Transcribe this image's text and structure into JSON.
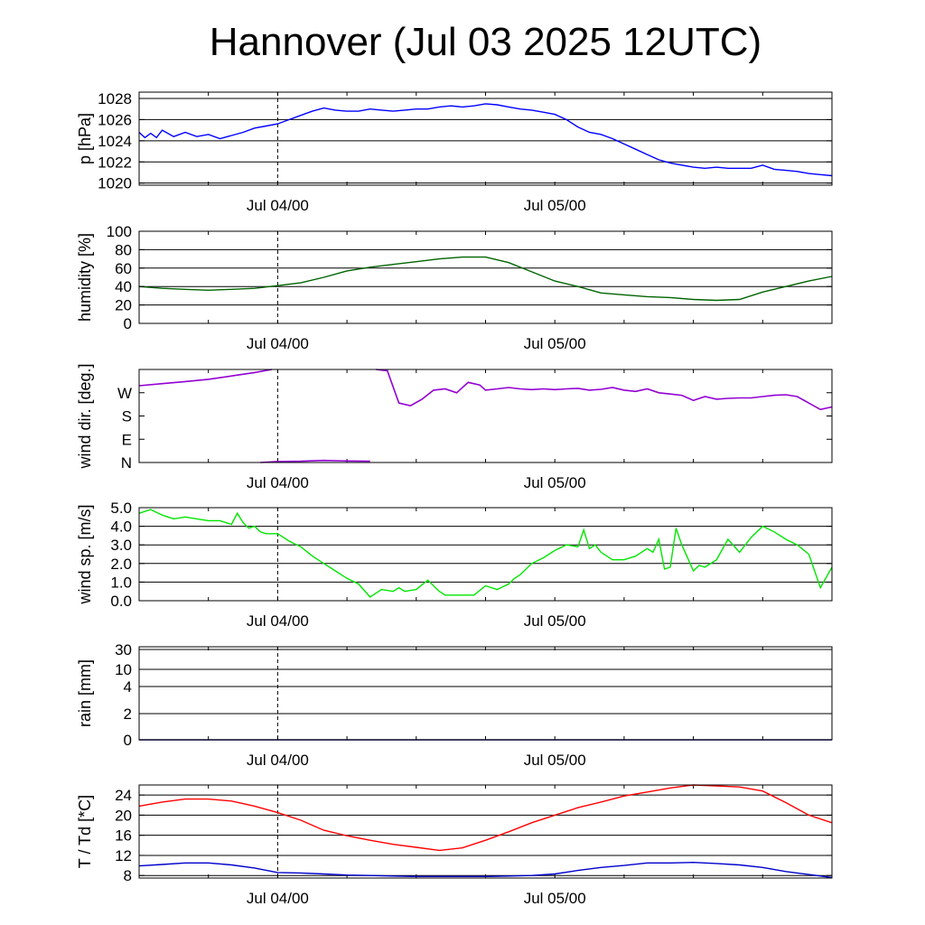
{
  "title": "Hannover (Jul 03 2025 12UTC)",
  "x_tick_labels": [
    "Jul 04/00",
    "Jul 05/00"
  ],
  "chart_data": [
    {
      "id": "pressure",
      "type": "line",
      "ylabel": "p [hPa]",
      "ylim": [
        1019.8,
        1028.6
      ],
      "yticks": [
        1020,
        1022,
        1024,
        1026,
        1028
      ],
      "ytick_labels": [
        "1020",
        "1022",
        "1024",
        "1026",
        "1028"
      ],
      "grid": true,
      "x_hours": [
        0,
        0.5,
        1,
        1.5,
        2,
        3,
        4,
        5,
        6,
        7,
        8,
        9,
        10,
        11,
        12,
        13,
        14,
        15,
        16,
        17,
        18,
        19,
        20,
        21,
        22,
        23,
        24,
        25,
        26,
        27,
        28,
        29,
        30,
        31,
        32,
        33,
        34,
        35,
        36,
        37,
        38,
        39,
        40,
        41,
        42,
        43,
        44,
        45,
        46,
        47,
        48,
        49,
        50,
        51,
        52,
        53,
        54,
        55,
        56,
        57,
        58,
        59,
        60
      ],
      "series": [
        {
          "color": "#0000ff",
          "values": [
            1024.8,
            1024.3,
            1024.7,
            1024.3,
            1025.0,
            1024.4,
            1024.8,
            1024.4,
            1024.6,
            1024.2,
            1024.5,
            1024.8,
            1025.2,
            1025.4,
            1025.6,
            1026.0,
            1026.4,
            1026.8,
            1027.1,
            1026.9,
            1026.8,
            1026.8,
            1027.0,
            1026.9,
            1026.8,
            1026.9,
            1027.0,
            1027.0,
            1027.2,
            1027.3,
            1027.2,
            1027.3,
            1027.5,
            1027.4,
            1027.2,
            1027.0,
            1026.9,
            1026.7,
            1026.5,
            1026.0,
            1025.3,
            1024.8,
            1024.6,
            1024.2,
            1023.7,
            1023.2,
            1022.7,
            1022.2,
            1021.9,
            1021.7,
            1021.5,
            1021.4,
            1021.5,
            1021.4,
            1021.4,
            1021.4,
            1021.7,
            1021.3,
            1021.2,
            1021.1,
            1020.9,
            1020.8,
            1020.7
          ]
        }
      ]
    },
    {
      "id": "humidity",
      "type": "line",
      "ylabel": "humidity [%]",
      "ylim": [
        0,
        100
      ],
      "yticks": [
        0,
        20,
        40,
        60,
        80,
        100
      ],
      "ytick_labels": [
        "0",
        "20",
        "40",
        "60",
        "80",
        "100"
      ],
      "grid": true,
      "x_hours": [
        0,
        2,
        4,
        6,
        8,
        10,
        12,
        14,
        16,
        18,
        20,
        22,
        24,
        26,
        28,
        30,
        32,
        34,
        36,
        38,
        40,
        42,
        44,
        46,
        48,
        50,
        52,
        54,
        56,
        58,
        60
      ],
      "series": [
        {
          "color": "#006400",
          "values": [
            40,
            38,
            37,
            36,
            37,
            38,
            41,
            44,
            50,
            57,
            61,
            64,
            67,
            70,
            72,
            72,
            66,
            56,
            46,
            40,
            33,
            31,
            29,
            28,
            26,
            25,
            26,
            34,
            40,
            46,
            51
          ]
        }
      ]
    },
    {
      "id": "wind_direction",
      "type": "scatter",
      "ylabel": "wind dir. [deg.]",
      "ylim": [
        0,
        360
      ],
      "yticks": [
        0,
        90,
        180,
        270
      ],
      "ytick_labels": [
        "N",
        "E",
        "S",
        "W"
      ],
      "grid": false,
      "series": [
        {
          "color": "#9400d3",
          "segments": [
            {
              "x": [
                0,
                2,
                4,
                6,
                8,
                10,
                11.5
              ],
              "y": [
                297,
                305,
                313,
                322,
                335,
                348,
                360
              ]
            },
            {
              "x": [
                10.5,
                12,
                14,
                16,
                18,
                20
              ],
              "y": [
                0,
                4,
                5,
                8,
                6,
                5
              ]
            },
            {
              "x": [
                20.5,
                21.5,
                22.5,
                23.5,
                24.5,
                25.5,
                26.5,
                27.5,
                28.5,
                29.5,
                30,
                31,
                32,
                33,
                34,
                35,
                36,
                37,
                38,
                39,
                40,
                41,
                42,
                43,
                44,
                45,
                46,
                47,
                48,
                49,
                50,
                51,
                52,
                53,
                54,
                55,
                56,
                57,
                58,
                59,
                60
              ],
              "y": [
                360,
                355,
                230,
                220,
                245,
                280,
                285,
                270,
                310,
                300,
                280,
                285,
                290,
                285,
                282,
                285,
                282,
                285,
                287,
                280,
                283,
                290,
                280,
                275,
                285,
                270,
                265,
                260,
                240,
                255,
                245,
                248,
                250,
                250,
                255,
                260,
                262,
                255,
                230,
                205,
                215
              ]
            }
          ]
        }
      ]
    },
    {
      "id": "wind_speed",
      "type": "line",
      "ylabel": "wind sp. [m/s]",
      "ylim": [
        0,
        5
      ],
      "yticks": [
        0,
        1,
        2,
        3,
        4,
        5
      ],
      "ytick_labels": [
        "0.0",
        "1.0",
        "2.0",
        "3.0",
        "4.0",
        "5.0"
      ],
      "grid": true,
      "x_hours": [
        0,
        1,
        2,
        3,
        4,
        5,
        6,
        7,
        8,
        8.5,
        9,
        9.5,
        10,
        10.5,
        11,
        12,
        13,
        14,
        15,
        16,
        17,
        18,
        19,
        20,
        21,
        22,
        22.5,
        23,
        24,
        25,
        26,
        26.5,
        27,
        28,
        29,
        30,
        31,
        32,
        32.5,
        33,
        34,
        35,
        36,
        37,
        38,
        38.5,
        39,
        39.5,
        40,
        41,
        42,
        43,
        44,
        44.5,
        45,
        45.5,
        46,
        46.5,
        47,
        48,
        48.5,
        49,
        50,
        51,
        52,
        53,
        54,
        55,
        56,
        57,
        58,
        59,
        60
      ],
      "series": [
        {
          "color": "#00e600",
          "values": [
            4.7,
            4.9,
            4.6,
            4.4,
            4.5,
            4.4,
            4.3,
            4.3,
            4.1,
            4.7,
            4.2,
            3.9,
            4.0,
            3.7,
            3.6,
            3.6,
            3.2,
            2.9,
            2.4,
            2.0,
            1.6,
            1.2,
            0.9,
            0.2,
            0.6,
            0.5,
            0.7,
            0.5,
            0.6,
            1.1,
            0.5,
            0.3,
            0.3,
            0.3,
            0.3,
            0.8,
            0.6,
            0.9,
            1.2,
            1.4,
            2.0,
            2.3,
            2.7,
            3.0,
            2.9,
            3.8,
            2.8,
            3.0,
            2.6,
            2.2,
            2.2,
            2.4,
            2.8,
            2.6,
            3.3,
            1.7,
            1.8,
            3.9,
            3.0,
            1.6,
            1.9,
            1.8,
            2.2,
            3.3,
            2.6,
            3.4,
            4.0,
            3.7,
            3.3,
            3.0,
            2.5,
            0.7,
            1.8
          ]
        }
      ]
    },
    {
      "id": "rain",
      "type": "line",
      "ylabel": "rain [mm]",
      "yticks": [
        0,
        2,
        4,
        10,
        30
      ],
      "ytick_labels": [
        "0",
        "2",
        "4",
        "10",
        "30"
      ],
      "grid": true,
      "x_hours": [
        0,
        60
      ],
      "series": [
        {
          "color": "#000080",
          "values": [
            0,
            0
          ]
        }
      ]
    },
    {
      "id": "temperature",
      "type": "line",
      "ylabel": "T / Td [*C]",
      "ylim": [
        7.5,
        26
      ],
      "yticks": [
        8,
        12,
        16,
        20,
        24
      ],
      "ytick_labels": [
        "8",
        "12",
        "16",
        "20",
        "24"
      ],
      "grid": true,
      "x_hours": [
        0,
        2,
        4,
        6,
        8,
        10,
        12,
        14,
        16,
        18,
        20,
        22,
        24,
        26,
        28,
        30,
        32,
        34,
        36,
        38,
        40,
        42,
        44,
        46,
        48,
        50,
        52,
        54,
        56,
        58,
        60
      ],
      "series": [
        {
          "name": "T",
          "color": "#ff0000",
          "values": [
            21.8,
            22.6,
            23.2,
            23.2,
            22.8,
            21.8,
            20.5,
            19.0,
            17.0,
            15.9,
            15.0,
            14.2,
            13.6,
            13.0,
            13.5,
            15.0,
            16.7,
            18.5,
            20.0,
            21.5,
            22.6,
            23.8,
            24.6,
            25.4,
            26.0,
            25.8,
            25.6,
            24.8,
            22.5,
            20.0,
            18.5
          ]
        },
        {
          "name": "Td",
          "color": "#0000cd",
          "values": [
            9.9,
            10.2,
            10.5,
            10.5,
            10.1,
            9.5,
            8.6,
            8.5,
            8.3,
            8.1,
            8.0,
            7.9,
            7.8,
            7.8,
            7.8,
            7.8,
            7.9,
            8.0,
            8.3,
            9.0,
            9.6,
            10.0,
            10.5,
            10.5,
            10.6,
            10.4,
            10.1,
            9.6,
            8.8,
            8.2,
            7.6
          ]
        }
      ]
    }
  ]
}
